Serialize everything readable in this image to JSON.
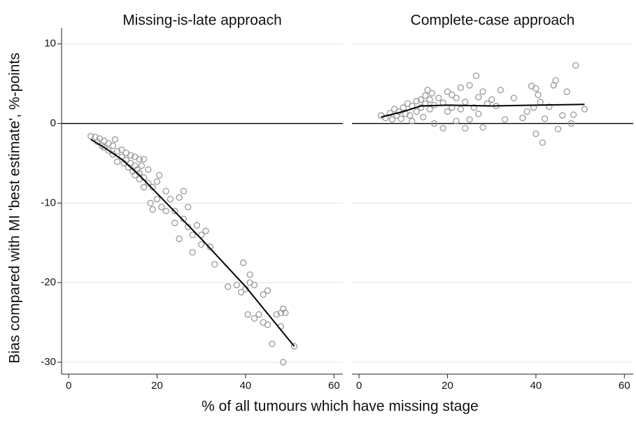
{
  "chart_data": [
    {
      "type": "scatter",
      "title": "Missing-is-late approach",
      "ylabel": "Bias compared with MI 'best estimate', %-points",
      "xlabel": "% of all tumours which have missing stage",
      "xlim": [
        -1.6,
        62
      ],
      "ylim": [
        -31.5,
        12
      ],
      "xticks": [
        0,
        20,
        40,
        60
      ],
      "yticks": [
        10,
        0,
        -10,
        -20,
        -30
      ],
      "grid": true,
      "reference_line": 0,
      "series": [
        {
          "type": "scatter",
          "color": "#999999",
          "x": [
            5,
            6,
            6.5,
            7,
            7.5,
            8,
            8,
            9,
            9,
            10,
            10,
            10.5,
            11,
            11,
            12,
            12,
            12.5,
            13,
            13,
            13.5,
            14,
            14,
            14.5,
            15,
            15,
            15,
            15.5,
            16,
            16,
            16,
            16.5,
            17,
            17,
            17,
            18,
            18,
            18.5,
            19,
            19,
            20,
            20,
            20.5,
            21,
            22,
            22,
            23,
            24,
            24,
            25,
            25,
            26,
            26,
            27,
            27,
            28,
            28,
            29,
            30,
            30,
            31,
            32,
            33,
            36,
            38,
            39,
            39.5,
            40,
            40.5,
            41,
            41,
            42,
            42,
            43,
            44,
            44,
            45,
            45,
            46,
            47,
            48,
            48,
            48.5,
            48.5,
            49,
            51
          ],
          "values": [
            -1.6,
            -1.7,
            -2.3,
            -1.9,
            -2.8,
            -2.2,
            -3,
            -2.5,
            -3.4,
            -2.8,
            -3.9,
            -2,
            -3.5,
            -4.8,
            -3.3,
            -4.2,
            -5,
            -3.7,
            -4.6,
            -5.5,
            -4,
            -5,
            -6,
            -4.2,
            -5.3,
            -6.5,
            -5.8,
            -4.5,
            -6.2,
            -7,
            -5.3,
            -4.5,
            -6.8,
            -8,
            -5.8,
            -7.5,
            -10,
            -8,
            -10.8,
            -7.3,
            -9.5,
            -6.5,
            -10.5,
            -8.5,
            -11,
            -9.5,
            -12.5,
            -11,
            -14.5,
            -9.3,
            -8.5,
            -12,
            -10.5,
            -13,
            -16.2,
            -14,
            -12.8,
            -15.2,
            -14,
            -13.5,
            -15.5,
            -17.7,
            -20.5,
            -20.3,
            -21.2,
            -17.5,
            -20.8,
            -24,
            -19,
            -20,
            -20.3,
            -24.5,
            -24,
            -25,
            -21.5,
            -21,
            -25.3,
            -27.7,
            -24,
            -25.5,
            -23.8,
            -23.3,
            -30,
            -23.8,
            -28
          ]
        },
        {
          "type": "line",
          "color": "#000000",
          "x": [
            5,
            8,
            12,
            16,
            20,
            30,
            40,
            51
          ],
          "values": [
            -2,
            -3,
            -4.5,
            -6.5,
            -8.8,
            -14.5,
            -20.5,
            -28
          ]
        }
      ]
    },
    {
      "type": "scatter",
      "title": "Complete-case approach",
      "xlim": [
        -1.6,
        62
      ],
      "ylim": [
        -31.5,
        12
      ],
      "xticks": [
        0,
        20,
        40,
        60
      ],
      "series": [
        {
          "type": "scatter",
          "color": "#999999",
          "x": [
            5,
            6,
            7,
            7.5,
            8,
            8.5,
            9,
            9.5,
            10,
            10.5,
            11,
            11.5,
            12,
            12,
            13,
            13,
            14,
            14,
            14.5,
            15,
            15,
            15.5,
            16,
            16,
            16.5,
            17,
            17,
            18,
            19,
            19,
            20,
            20,
            21,
            21,
            22,
            22,
            23,
            23,
            24,
            24,
            25,
            25,
            26,
            26.5,
            27,
            27,
            28,
            28,
            29,
            30,
            31,
            32,
            33,
            35,
            37,
            38,
            39,
            39.5,
            40,
            40,
            40.5,
            41,
            41.5,
            42,
            43,
            44,
            44.5,
            45,
            46,
            47,
            48,
            48.5,
            49,
            51
          ],
          "values": [
            1,
            0.7,
            1.3,
            0.5,
            1.8,
            1,
            1.5,
            0.6,
            2,
            1.2,
            2.5,
            1,
            2.2,
            0.3,
            2.8,
            1.5,
            3,
            2,
            0.8,
            3.5,
            2.5,
            4.2,
            3,
            1.8,
            3.8,
            2.3,
            0,
            3.2,
            2.6,
            -0.6,
            4,
            1.5,
            3.6,
            2,
            0.3,
            3.2,
            4.5,
            1.8,
            2.7,
            -0.6,
            4.8,
            0.5,
            2,
            6,
            3.3,
            1.2,
            4,
            -0.5,
            2.5,
            3,
            2.2,
            4.2,
            0.5,
            3.2,
            0.7,
            1.5,
            4.7,
            2,
            -1.3,
            4.4,
            3.6,
            2.7,
            -2.4,
            0.6,
            2.1,
            4.8,
            5.4,
            -0.7,
            1,
            4,
            0,
            1.1,
            7.3,
            1.8
          ]
        },
        {
          "type": "line",
          "color": "#000000",
          "x": [
            5,
            10,
            14,
            20,
            30,
            40,
            51
          ],
          "values": [
            0.8,
            1.5,
            2.2,
            2.3,
            2.2,
            2.3,
            2.4
          ]
        }
      ]
    }
  ]
}
